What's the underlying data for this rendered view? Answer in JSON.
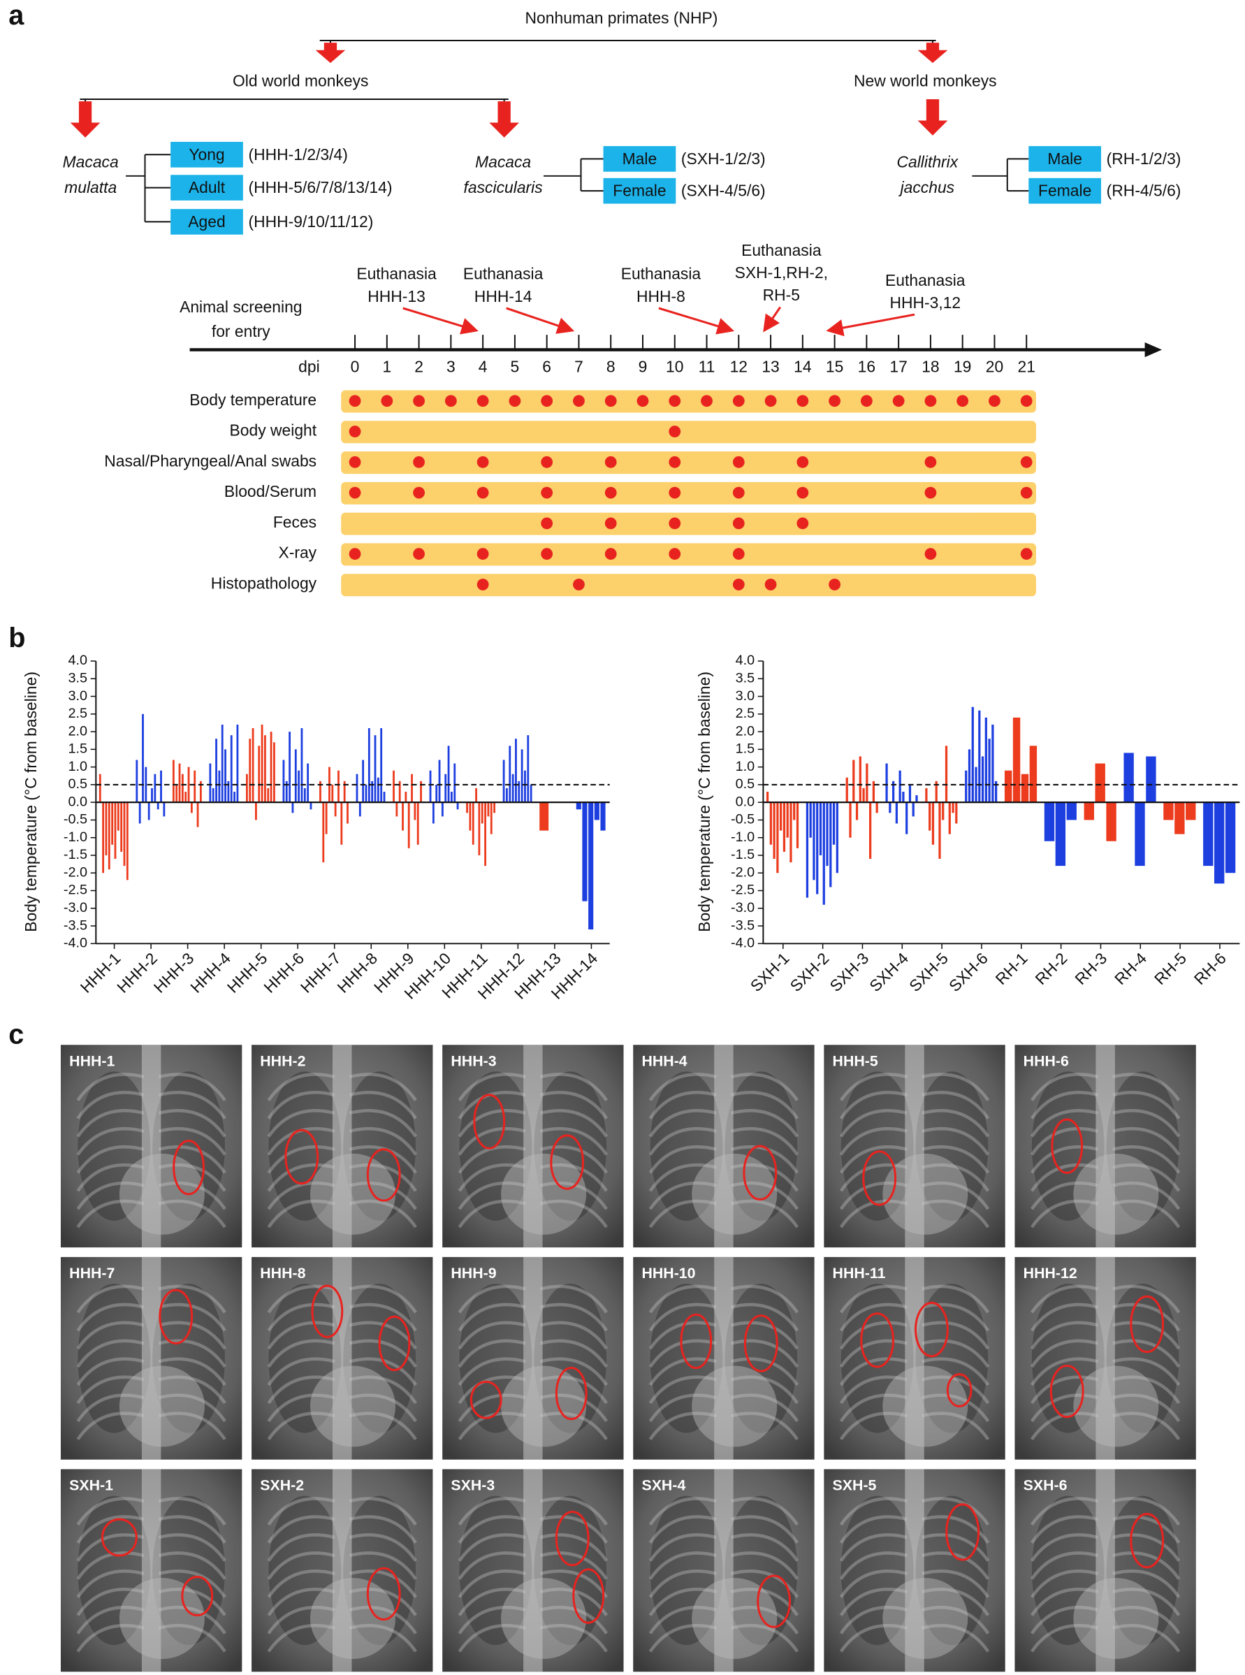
{
  "panel_labels": [
    "a",
    "b",
    "c"
  ],
  "tree": {
    "root": "Nonhuman primates (NHP)",
    "groups": [
      "Old world monkeys",
      "New world monkeys"
    ],
    "species": [
      {
        "lines": [
          "Macaca",
          "mulatta"
        ],
        "subgroups": [
          {
            "label": "Yong",
            "ids": "(HHH-1/2/3/4)"
          },
          {
            "label": "Adult",
            "ids": "(HHH-5/6/7/8/13/14)"
          },
          {
            "label": "Aged",
            "ids": "(HHH-9/10/11/12)"
          }
        ]
      },
      {
        "lines": [
          "Macaca",
          "fascicularis"
        ],
        "subgroups": [
          {
            "label": "Male",
            "ids": "(SXH-1/2/3)"
          },
          {
            "label": "Female",
            "ids": "(SXH-4/5/6)"
          }
        ]
      },
      {
        "lines": [
          "Callithrix",
          "jacchus"
        ],
        "subgroups": [
          {
            "label": "Male",
            "ids": "(RH-1/2/3)"
          },
          {
            "label": "Female",
            "ids": "(RH-4/5/6)"
          }
        ]
      }
    ]
  },
  "timeline": {
    "start_lines": [
      "Animal screening",
      "for entry"
    ],
    "axis_label": "dpi",
    "ticks": [
      0,
      1,
      2,
      3,
      4,
      5,
      6,
      7,
      8,
      9,
      10,
      11,
      12,
      13,
      14,
      15,
      16,
      17,
      18,
      19,
      20,
      21
    ],
    "euthanasia": [
      {
        "lines": [
          "Euthanasia",
          "HHH-13"
        ],
        "day": 4
      },
      {
        "lines": [
          "Euthanasia",
          "HHH-14"
        ],
        "day": 7
      },
      {
        "lines": [
          "Euthanasia",
          "HHH-8"
        ],
        "day": 12
      },
      {
        "lines": [
          "Euthanasia",
          "SXH-1,RH-2,",
          "RH-5"
        ],
        "day": 13
      },
      {
        "lines": [
          "Euthanasia",
          "HHH-3,12"
        ],
        "day": 15
      }
    ],
    "rows": [
      {
        "label": "Body temperature",
        "days": [
          0,
          1,
          2,
          3,
          4,
          5,
          6,
          7,
          8,
          9,
          10,
          11,
          12,
          13,
          14,
          15,
          16,
          17,
          18,
          19,
          20,
          21
        ]
      },
      {
        "label": "Body weight",
        "days": [
          0,
          10
        ]
      },
      {
        "label": "Nasal/Pharyngeal/Anal swabs",
        "days": [
          0,
          2,
          4,
          6,
          8,
          10,
          12,
          14,
          18,
          21
        ]
      },
      {
        "label": "Blood/Serum",
        "days": [
          0,
          2,
          4,
          6,
          8,
          10,
          12,
          14,
          18,
          21
        ]
      },
      {
        "label": "Feces",
        "days": [
          6,
          8,
          10,
          12,
          14
        ]
      },
      {
        "label": "X-ray",
        "days": [
          0,
          2,
          4,
          6,
          8,
          10,
          12,
          18,
          21
        ]
      },
      {
        "label": "Histopathology",
        "days": [
          4,
          7,
          12,
          13,
          15
        ]
      }
    ]
  },
  "chart_data": [
    {
      "type": "bar",
      "ylabel": "Body temperature (°C from baseline)",
      "ylim": [
        -4,
        4
      ],
      "threshold": 0.5,
      "yticks": [
        {
          "value": -4,
          "label": "-4.0"
        },
        {
          "value": -3.5,
          "label": "-3.5"
        },
        {
          "value": -3,
          "label": "-3.0"
        },
        {
          "value": -2.5,
          "label": "-2.5"
        },
        {
          "value": -2,
          "label": "-2.0"
        },
        {
          "value": -1.5,
          "label": "-1.5"
        },
        {
          "value": -1,
          "label": "-1.0"
        },
        {
          "value": -0.5,
          "label": "-0.5"
        },
        {
          "value": 0,
          "label": "0.0"
        },
        {
          "value": 0.5,
          "label": "0.5"
        },
        {
          "value": 1,
          "label": "1.0"
        },
        {
          "value": 1.5,
          "label": "1.5"
        },
        {
          "value": 2,
          "label": "2.0"
        },
        {
          "value": 2.5,
          "label": "2.5"
        },
        {
          "value": 3,
          "label": "3.0"
        },
        {
          "value": 3.5,
          "label": "3.5"
        },
        {
          "value": 4,
          "label": "4.0"
        }
      ],
      "series": [
        {
          "name": "HHH-1",
          "color": "#ec3b1d",
          "values": [
            0.8,
            -2.0,
            -1.5,
            -1.9,
            -1.2,
            -1.6,
            -0.8,
            -1.4,
            -1.8,
            -2.2
          ]
        },
        {
          "name": "HHH-2",
          "color": "#1d3fe0",
          "values": [
            1.2,
            -0.6,
            2.5,
            1.0,
            -0.5,
            0.4,
            0.8,
            -0.2,
            0.9,
            -0.4
          ]
        },
        {
          "name": "HHH-3",
          "color": "#ec3b1d",
          "values": [
            1.2,
            0.5,
            1.1,
            0.8,
            0.3,
            1.0,
            -0.3,
            0.9,
            -0.7,
            0.6
          ]
        },
        {
          "name": "HHH-4",
          "color": "#1d3fe0",
          "values": [
            1.1,
            0.4,
            1.8,
            0.9,
            2.2,
            1.5,
            0.6,
            1.9,
            0.3,
            2.2
          ]
        },
        {
          "name": "HHH-5",
          "color": "#ec3b1d",
          "values": [
            0.8,
            1.8,
            2.1,
            -0.5,
            1.6,
            2.2,
            1.9,
            0.4,
            2.0,
            1.7
          ]
        },
        {
          "name": "HHH-6",
          "color": "#1d3fe0",
          "values": [
            1.2,
            0.6,
            2.0,
            -0.3,
            1.5,
            0.9,
            2.1,
            0.4,
            1.1,
            -0.2
          ]
        },
        {
          "name": "HHH-7",
          "color": "#ec3b1d",
          "values": [
            0.6,
            -1.7,
            -0.9,
            1.0,
            0.5,
            -0.4,
            0.9,
            -1.2,
            0.6,
            -0.6
          ]
        },
        {
          "name": "HHH-8",
          "color": "#1d3fe0",
          "values": [
            0.8,
            -0.4,
            1.2,
            0.5,
            2.1,
            0.6,
            1.9,
            0.7,
            2.1,
            0.3
          ]
        },
        {
          "name": "HHH-9",
          "color": "#ec3b1d",
          "values": [
            0.9,
            -0.4,
            0.6,
            -0.8,
            0.3,
            -1.3,
            0.8,
            -0.5,
            -1.2,
            0.6
          ]
        },
        {
          "name": "HHH-10",
          "color": "#1d3fe0",
          "values": [
            0.9,
            -0.6,
            0.5,
            1.2,
            -0.4,
            0.8,
            1.6,
            0.3,
            1.1,
            -0.2
          ]
        },
        {
          "name": "HHH-11",
          "color": "#ec3b1d",
          "values": [
            -0.3,
            -0.8,
            -1.2,
            0.4,
            -1.5,
            -0.6,
            -1.8,
            -0.4,
            -0.9,
            -0.3
          ]
        },
        {
          "name": "HHH-12",
          "color": "#1d3fe0",
          "values": [
            1.2,
            0.4,
            1.6,
            0.8,
            1.8,
            0.6,
            1.5,
            0.9,
            1.9,
            0.5
          ]
        },
        {
          "name": "HHH-13",
          "color": "#ec3b1d",
          "values": [
            -0.8
          ]
        },
        {
          "name": "HHH-14",
          "color": "#1d3fe0",
          "values": [
            -0.2,
            -2.8,
            -3.6,
            -0.5,
            -0.8
          ]
        }
      ]
    },
    {
      "type": "bar",
      "ylabel": "Body temperature (°C from baseline)",
      "ylim": [
        -4,
        4
      ],
      "threshold": 0.5,
      "yticks": [
        {
          "value": -4,
          "label": "-4.0"
        },
        {
          "value": -3.5,
          "label": "-3.5"
        },
        {
          "value": -3,
          "label": "-3.0"
        },
        {
          "value": -2.5,
          "label": "-2.5"
        },
        {
          "value": -2,
          "label": "-2.0"
        },
        {
          "value": -1.5,
          "label": "-1.5"
        },
        {
          "value": -1,
          "label": "-1.0"
        },
        {
          "value": -0.5,
          "label": "-0.5"
        },
        {
          "value": 0,
          "label": "0.0"
        },
        {
          "value": 0.5,
          "label": "0.5"
        },
        {
          "value": 1,
          "label": "1.0"
        },
        {
          "value": 1.5,
          "label": "1.5"
        },
        {
          "value": 2,
          "label": "2.0"
        },
        {
          "value": 2.5,
          "label": "2.5"
        },
        {
          "value": 3,
          "label": "3.0"
        },
        {
          "value": 3.5,
          "label": "3.5"
        },
        {
          "value": 4,
          "label": "4.0"
        }
      ],
      "series": [
        {
          "name": "SXH-1",
          "color": "#ec3b1d",
          "values": [
            0.3,
            -1.2,
            -1.6,
            -2.0,
            -0.8,
            -1.4,
            -1.0,
            -1.7,
            -0.5,
            -1.3
          ]
        },
        {
          "name": "SXH-2",
          "color": "#1d3fe0",
          "values": [
            -2.7,
            -1.0,
            -2.2,
            -2.6,
            -1.5,
            -2.9,
            -1.8,
            -2.4,
            -1.2,
            -2.0
          ]
        },
        {
          "name": "SXH-3",
          "color": "#ec3b1d",
          "values": [
            0.7,
            -1.0,
            1.2,
            -0.5,
            1.3,
            0.4,
            1.1,
            -1.6,
            0.6,
            -0.3
          ]
        },
        {
          "name": "SXH-4",
          "color": "#1d3fe0",
          "values": [
            1.1,
            -0.3,
            0.6,
            -0.6,
            0.9,
            0.3,
            -0.9,
            0.5,
            -0.4,
            0.2
          ]
        },
        {
          "name": "SXH-5",
          "color": "#ec3b1d",
          "values": [
            0.4,
            -0.8,
            -1.2,
            0.6,
            -1.6,
            -0.5,
            1.6,
            -0.9,
            -0.3,
            -0.6
          ]
        },
        {
          "name": "SXH-6",
          "color": "#1d3fe0",
          "values": [
            0.9,
            1.5,
            2.7,
            1.0,
            2.6,
            1.3,
            2.4,
            1.8,
            2.2,
            0.6
          ]
        },
        {
          "name": "RH-1",
          "color": "#ec3b1d",
          "values": [
            0.9,
            2.4,
            0.8,
            1.6
          ]
        },
        {
          "name": "RH-2",
          "color": "#1d3fe0",
          "values": [
            -1.1,
            -1.8,
            -0.5
          ]
        },
        {
          "name": "RH-3",
          "color": "#ec3b1d",
          "values": [
            -0.5,
            1.1,
            -1.1
          ]
        },
        {
          "name": "RH-4",
          "color": "#1d3fe0",
          "values": [
            1.4,
            -1.8,
            1.3
          ]
        },
        {
          "name": "RH-5",
          "color": "#ec3b1d",
          "values": [
            -0.5,
            -0.9,
            -0.5
          ]
        },
        {
          "name": "RH-6",
          "color": "#1d3fe0",
          "values": [
            -1.8,
            -2.3,
            -2.0
          ]
        }
      ]
    }
  ],
  "xrays": [
    "HHH-1",
    "HHH-2",
    "HHH-3",
    "HHH-4",
    "HHH-5",
    "HHH-6",
    "HHH-7",
    "HHH-8",
    "HHH-9",
    "HHH-10",
    "HHH-11",
    "HHH-12",
    "SXH-1",
    "SXH-2",
    "SXH-3",
    "SXH-4",
    "SXH-5",
    "SXH-6"
  ]
}
